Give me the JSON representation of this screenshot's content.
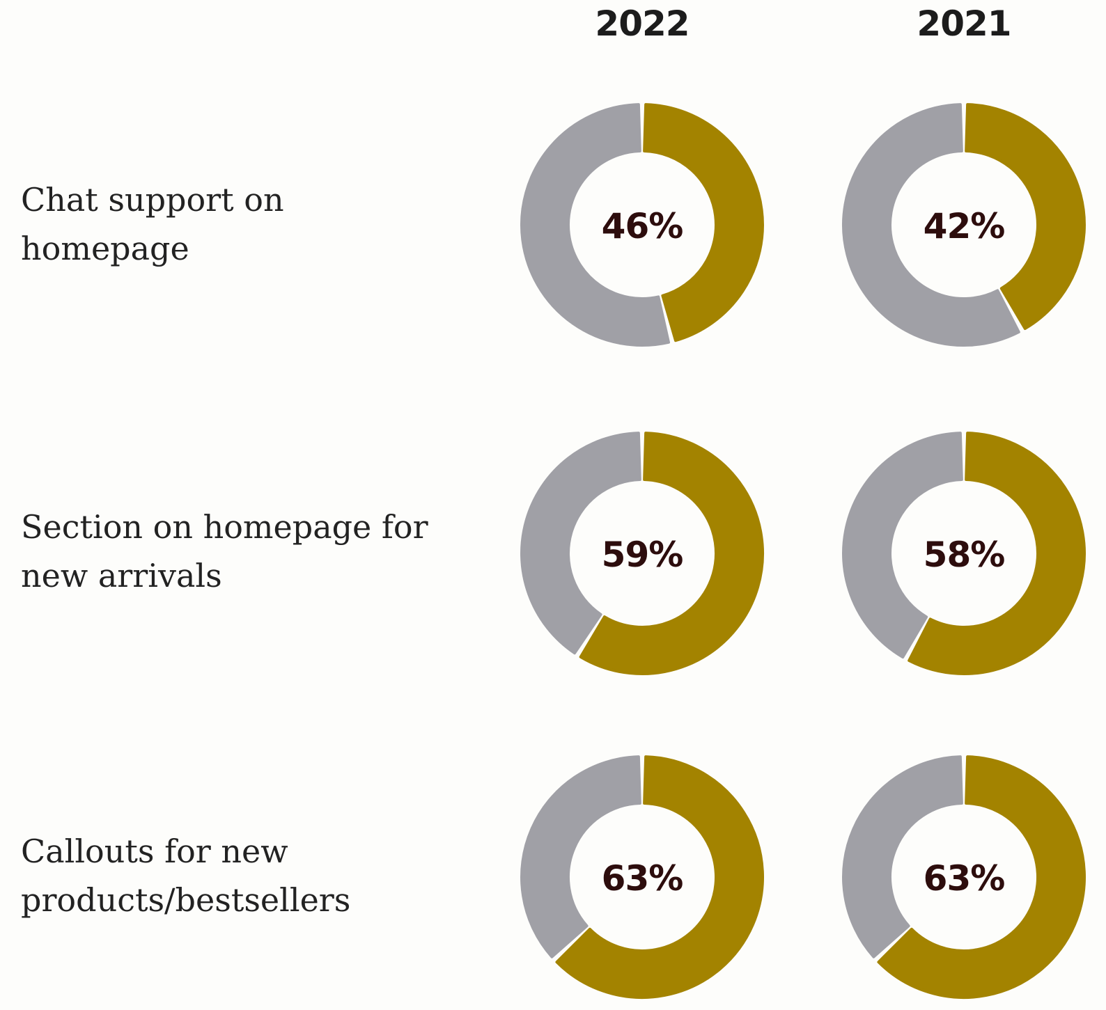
{
  "chart_data": {
    "type": "pie",
    "columns": [
      "2022",
      "2021"
    ],
    "rows": [
      {
        "label": "Chat support on homepage",
        "values": [
          46,
          42
        ],
        "value_labels": [
          "46%",
          "42%"
        ]
      },
      {
        "label": "Section on homepage for new arrivals",
        "values": [
          59,
          58
        ],
        "value_labels": [
          "59%",
          "58%"
        ]
      },
      {
        "label": "Callouts for new products/bestsellers",
        "values": [
          63,
          63
        ],
        "value_labels": [
          "63%",
          "63%"
        ]
      }
    ],
    "unit": "%",
    "colors": {
      "value": "#a38300",
      "remainder": "#a0a0a6",
      "value_text": "#2d0d0d",
      "background": "#fdfdfb"
    }
  }
}
